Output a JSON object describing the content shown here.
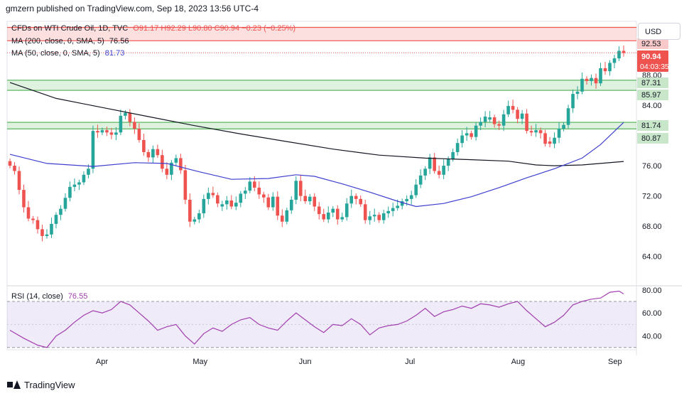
{
  "header": "gmzern published on TradingView.com, Sep 18, 2023 13:56 UTC-4",
  "legend": {
    "symbol": "CFDs on WTI Crude Oil, 1D, TVC",
    "ohlc": "O91.17 H92.29 L90.80 C90.94 −0.23 (−0.25%)",
    "ma200_label": "MA (200, close, 0, SMA, 5)",
    "ma200_value": "76.56",
    "ma50_label": "MA (50, close, 0, SMA, 5)",
    "ma50_value": "81.73",
    "rsi_label": "RSI (14, close)",
    "rsi_value": "76.55"
  },
  "currency_button": "USD",
  "footer_brand": "TradingView",
  "colors": {
    "up": "#26a69a",
    "down": "#ef5350",
    "ma200": "#131722",
    "ma50": "#3f3fcf",
    "rsi": "#a23fb0",
    "zone_red": "#ef5350",
    "zone_green": "#4caf50"
  },
  "chart_data": {
    "type": "candlestick",
    "price_axis": {
      "ylim": [
        60.3,
        95.1
      ],
      "ticks": [
        "64.00",
        "68.00",
        "72.00",
        "76.00",
        "80.00",
        "84.00",
        "88.00"
      ]
    },
    "x_labels": [
      "Apr",
      "May",
      "Jun",
      "Jul",
      "Aug",
      "Sep"
    ],
    "last_price": "90.94",
    "countdown": "04:03:35",
    "zones": [
      {
        "color": "red",
        "low": 92.53,
        "high": 94.3,
        "label": "92.53"
      },
      {
        "color": "green",
        "low": 85.97,
        "high": 87.31,
        "labels": [
          "87.31",
          "85.97"
        ]
      },
      {
        "color": "green",
        "low": 80.87,
        "high": 81.74,
        "labels": [
          "81.74",
          "80.87"
        ]
      }
    ],
    "anchors": [
      {
        "t": 0,
        "c": 76.0
      },
      {
        "t": 1,
        "c": 75.3
      },
      {
        "t": 2,
        "c": 72.8
      },
      {
        "t": 3,
        "c": 70.5
      },
      {
        "t": 4,
        "c": 69.0
      },
      {
        "t": 5,
        "c": 68.8
      },
      {
        "t": 6,
        "c": 67.6
      },
      {
        "t": 7,
        "c": 66.7
      },
      {
        "t": 8,
        "c": 66.9
      },
      {
        "t": 9,
        "c": 68.3
      },
      {
        "t": 10,
        "c": 69.5
      },
      {
        "t": 11,
        "c": 70.3
      },
      {
        "t": 13,
        "c": 73.2
      },
      {
        "t": 15,
        "c": 73.8
      },
      {
        "t": 16,
        "c": 74.8
      },
      {
        "t": 17,
        "c": 75.6
      },
      {
        "t": 18,
        "c": 80.6
      },
      {
        "t": 19,
        "c": 80.4
      },
      {
        "t": 20,
        "c": 80.7
      },
      {
        "t": 22,
        "c": 80.1
      },
      {
        "t": 23,
        "c": 80.4
      },
      {
        "t": 24,
        "c": 82.6
      },
      {
        "t": 25,
        "c": 83.0
      },
      {
        "t": 26,
        "c": 81.8
      },
      {
        "t": 27,
        "c": 80.9
      },
      {
        "t": 28,
        "c": 79.4
      },
      {
        "t": 29,
        "c": 77.8
      },
      {
        "t": 30,
        "c": 77.1
      },
      {
        "t": 31,
        "c": 78.2
      },
      {
        "t": 32,
        "c": 77.4
      },
      {
        "t": 33,
        "c": 75.6
      },
      {
        "t": 34,
        "c": 74.8
      },
      {
        "t": 35,
        "c": 76.4
      },
      {
        "t": 36,
        "c": 77.0
      },
      {
        "t": 37,
        "c": 75.4
      },
      {
        "t": 38,
        "c": 71.5
      },
      {
        "t": 39,
        "c": 68.6
      },
      {
        "t": 40,
        "c": 68.9
      },
      {
        "t": 41,
        "c": 69.7
      },
      {
        "t": 42,
        "c": 71.6
      },
      {
        "t": 43,
        "c": 72.4
      },
      {
        "t": 44,
        "c": 72.1
      },
      {
        "t": 45,
        "c": 71.0
      },
      {
        "t": 46,
        "c": 70.9
      },
      {
        "t": 47,
        "c": 71.4
      },
      {
        "t": 48,
        "c": 70.6
      },
      {
        "t": 49,
        "c": 71.1
      },
      {
        "t": 50,
        "c": 72.3
      },
      {
        "t": 51,
        "c": 72.7
      },
      {
        "t": 52,
        "c": 73.9
      },
      {
        "t": 53,
        "c": 73.1
      },
      {
        "t": 54,
        "c": 72.2
      },
      {
        "t": 55,
        "c": 71.8
      },
      {
        "t": 56,
        "c": 70.5
      },
      {
        "t": 57,
        "c": 71.9
      },
      {
        "t": 58,
        "c": 69.4
      },
      {
        "t": 59,
        "c": 68.6
      },
      {
        "t": 60,
        "c": 70.1
      },
      {
        "t": 61,
        "c": 71.5
      },
      {
        "t": 62,
        "c": 74.0
      },
      {
        "t": 63,
        "c": 72.0
      },
      {
        "t": 64,
        "c": 71.3
      },
      {
        "t": 65,
        "c": 71.9
      },
      {
        "t": 66,
        "c": 70.6
      },
      {
        "t": 67,
        "c": 69.6
      },
      {
        "t": 68,
        "c": 68.9
      },
      {
        "t": 69,
        "c": 69.8
      },
      {
        "t": 70,
        "c": 70.3
      },
      {
        "t": 71,
        "c": 68.9
      },
      {
        "t": 72,
        "c": 69.2
      },
      {
        "t": 73,
        "c": 71.0
      },
      {
        "t": 74,
        "c": 72.0
      },
      {
        "t": 75,
        "c": 71.6
      },
      {
        "t": 76,
        "c": 70.9
      },
      {
        "t": 77,
        "c": 68.8
      },
      {
        "t": 78,
        "c": 69.3
      },
      {
        "t": 79,
        "c": 69.5
      },
      {
        "t": 80,
        "c": 68.8
      },
      {
        "t": 81,
        "c": 69.7
      },
      {
        "t": 82,
        "c": 70.0
      },
      {
        "t": 83,
        "c": 70.4
      },
      {
        "t": 84,
        "c": 70.7
      },
      {
        "t": 85,
        "c": 71.3
      },
      {
        "t": 86,
        "c": 71.6
      },
      {
        "t": 87,
        "c": 72.1
      },
      {
        "t": 88,
        "c": 73.5
      },
      {
        "t": 89,
        "c": 74.7
      },
      {
        "t": 90,
        "c": 75.6
      },
      {
        "t": 91,
        "c": 77.1
      },
      {
        "t": 92,
        "c": 75.3
      },
      {
        "t": 93,
        "c": 74.8
      },
      {
        "t": 94,
        "c": 76.0
      },
      {
        "t": 95,
        "c": 76.9
      },
      {
        "t": 96,
        "c": 77.8
      },
      {
        "t": 97,
        "c": 79.0
      },
      {
        "t": 98,
        "c": 80.0
      },
      {
        "t": 99,
        "c": 80.3
      },
      {
        "t": 100,
        "c": 79.8
      },
      {
        "t": 101,
        "c": 81.3
      },
      {
        "t": 102,
        "c": 81.8
      },
      {
        "t": 103,
        "c": 82.5
      },
      {
        "t": 104,
        "c": 82.4
      },
      {
        "t": 105,
        "c": 81.5
      },
      {
        "t": 106,
        "c": 81.3
      },
      {
        "t": 107,
        "c": 82.8
      },
      {
        "t": 108,
        "c": 83.9
      },
      {
        "t": 109,
        "c": 83.4
      },
      {
        "t": 110,
        "c": 82.2
      },
      {
        "t": 111,
        "c": 82.9
      },
      {
        "t": 112,
        "c": 80.6
      },
      {
        "t": 113,
        "c": 80.4
      },
      {
        "t": 114,
        "c": 80.7
      },
      {
        "t": 115,
        "c": 80.3
      },
      {
        "t": 116,
        "c": 78.9
      },
      {
        "t": 117,
        "c": 78.9
      },
      {
        "t": 118,
        "c": 79.7
      },
      {
        "t": 119,
        "c": 80.9
      },
      {
        "t": 120,
        "c": 81.4
      },
      {
        "t": 121,
        "c": 83.6
      },
      {
        "t": 122,
        "c": 85.5
      },
      {
        "t": 123,
        "c": 85.8
      },
      {
        "t": 124,
        "c": 87.5
      },
      {
        "t": 125,
        "c": 87.2
      },
      {
        "t": 126,
        "c": 87.6
      },
      {
        "t": 127,
        "c": 86.9
      },
      {
        "t": 128,
        "c": 88.9
      },
      {
        "t": 129,
        "c": 88.5
      },
      {
        "t": 130,
        "c": 89.6
      },
      {
        "t": 131,
        "c": 90.2
      },
      {
        "t": 132,
        "c": 91.2
      },
      {
        "t": 133,
        "c": 90.9
      }
    ],
    "ma50_points": [
      [
        0,
        77.5
      ],
      [
        8,
        76.3
      ],
      [
        18,
        75.9
      ],
      [
        27,
        76.4
      ],
      [
        34,
        76.3
      ],
      [
        41,
        75.2
      ],
      [
        48,
        74.2
      ],
      [
        56,
        74.3
      ],
      [
        62,
        74.8
      ],
      [
        66,
        74.6
      ],
      [
        72,
        73.6
      ],
      [
        78,
        72.5
      ],
      [
        84,
        71.3
      ],
      [
        88,
        70.6
      ],
      [
        94,
        71.0
      ],
      [
        100,
        71.9
      ],
      [
        106,
        73.1
      ],
      [
        112,
        74.4
      ],
      [
        118,
        75.6
      ],
      [
        124,
        77.0
      ],
      [
        128,
        78.8
      ],
      [
        133,
        81.73
      ]
    ],
    "ma200_points": [
      [
        0,
        87.0
      ],
      [
        10,
        84.9
      ],
      [
        20,
        83.7
      ],
      [
        30,
        82.5
      ],
      [
        40,
        81.3
      ],
      [
        50,
        80.2
      ],
      [
        60,
        79.2
      ],
      [
        70,
        78.2
      ],
      [
        80,
        77.4
      ],
      [
        90,
        77.0
      ],
      [
        100,
        76.8
      ],
      [
        108,
        76.6
      ],
      [
        114,
        76.1
      ],
      [
        118,
        76.0
      ],
      [
        124,
        76.1
      ],
      [
        133,
        76.56
      ]
    ],
    "rsi": {
      "ylim": [
        28,
        83
      ],
      "ticks": [
        "40.00",
        "60.00",
        "80.00"
      ],
      "band": [
        30,
        70
      ],
      "points": [
        [
          0,
          45
        ],
        [
          3,
          38
        ],
        [
          6,
          32
        ],
        [
          8,
          30
        ],
        [
          10,
          40
        ],
        [
          12,
          45
        ],
        [
          14,
          52
        ],
        [
          16,
          58
        ],
        [
          18,
          62
        ],
        [
          20,
          60
        ],
        [
          22,
          63
        ],
        [
          24,
          70
        ],
        [
          26,
          67
        ],
        [
          28,
          60
        ],
        [
          30,
          53
        ],
        [
          32,
          45
        ],
        [
          34,
          48
        ],
        [
          36,
          50
        ],
        [
          38,
          40
        ],
        [
          40,
          33
        ],
        [
          42,
          42
        ],
        [
          44,
          47
        ],
        [
          46,
          44
        ],
        [
          48,
          50
        ],
        [
          50,
          54
        ],
        [
          52,
          56
        ],
        [
          54,
          50
        ],
        [
          56,
          47
        ],
        [
          58,
          45
        ],
        [
          60,
          53
        ],
        [
          62,
          60
        ],
        [
          64,
          54
        ],
        [
          66,
          48
        ],
        [
          68,
          43
        ],
        [
          70,
          50
        ],
        [
          72,
          49
        ],
        [
          74,
          55
        ],
        [
          76,
          50
        ],
        [
          78,
          41
        ],
        [
          80,
          47
        ],
        [
          82,
          49
        ],
        [
          84,
          50
        ],
        [
          86,
          53
        ],
        [
          88,
          58
        ],
        [
          90,
          64
        ],
        [
          92,
          57
        ],
        [
          94,
          61
        ],
        [
          96,
          63
        ],
        [
          98,
          66
        ],
        [
          100,
          64
        ],
        [
          102,
          68
        ],
        [
          104,
          67
        ],
        [
          106,
          65
        ],
        [
          108,
          68
        ],
        [
          110,
          70
        ],
        [
          112,
          62
        ],
        [
          114,
          55
        ],
        [
          116,
          48
        ],
        [
          118,
          52
        ],
        [
          120,
          58
        ],
        [
          122,
          67
        ],
        [
          124,
          70
        ],
        [
          126,
          72
        ],
        [
          128,
          73
        ],
        [
          130,
          78
        ],
        [
          132,
          79
        ],
        [
          133,
          76.55
        ]
      ]
    }
  }
}
